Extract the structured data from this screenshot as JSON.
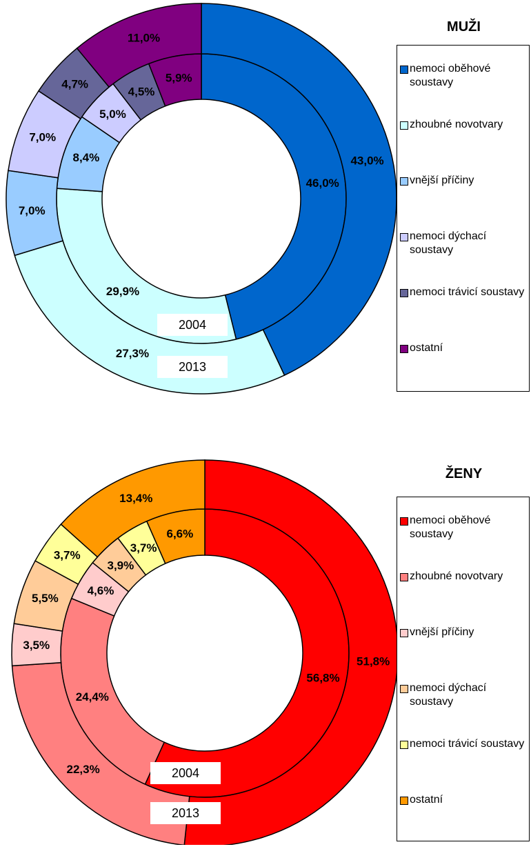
{
  "chart_data": [
    {
      "type": "donut",
      "title": "MUŽI",
      "categories": [
        "nemoci oběhové soustavy",
        "zhoubné novotvary",
        "vnější příčiny",
        "nemoci dýchací soustavy",
        "nemoci trávicí soustavy",
        "ostatní"
      ],
      "colors": [
        "#0066cc",
        "#ccffff",
        "#99ccff",
        "#ccccff",
        "#666699",
        "#800080"
      ],
      "series": [
        {
          "name": "2004",
          "values": [
            46.0,
            29.9,
            8.4,
            5.0,
            4.5,
            5.9
          ],
          "value_labels": [
            "46,0%",
            "29,9%",
            "8,4%",
            "5,0%",
            "4,5%",
            "5,9%"
          ]
        },
        {
          "name": "2013",
          "values": [
            43.0,
            27.3,
            7.0,
            7.0,
            4.7,
            11.0
          ],
          "value_labels": [
            "43,0%",
            "27,3%",
            "7,0%",
            "7,0%",
            "4,7%",
            "11,0%"
          ]
        }
      ]
    },
    {
      "type": "donut",
      "title": "ŽENY",
      "categories": [
        "nemoci oběhové soustavy",
        "zhoubné novotvary",
        "vnější příčiny",
        "nemoci dýchací soustavy",
        "nemoci trávicí soustavy",
        "ostatní"
      ],
      "colors": [
        "#ff0000",
        "#ff8080",
        "#ffcccc",
        "#ffcc99",
        "#ffff99",
        "#ff9900"
      ],
      "series": [
        {
          "name": "2004",
          "values": [
            56.8,
            24.4,
            4.6,
            3.9,
            3.7,
            6.6
          ],
          "value_labels": [
            "56,8%",
            "24,4%",
            "4,6%",
            "3,9%",
            "3,7%",
            "6,6%"
          ]
        },
        {
          "name": "2013",
          "values": [
            51.8,
            22.3,
            3.5,
            5.5,
            3.7,
            13.4
          ],
          "value_labels": [
            "51,8%",
            "22,3%",
            "3,5%",
            "5,5%",
            "3,7%",
            "13,4%"
          ]
        }
      ]
    }
  ]
}
